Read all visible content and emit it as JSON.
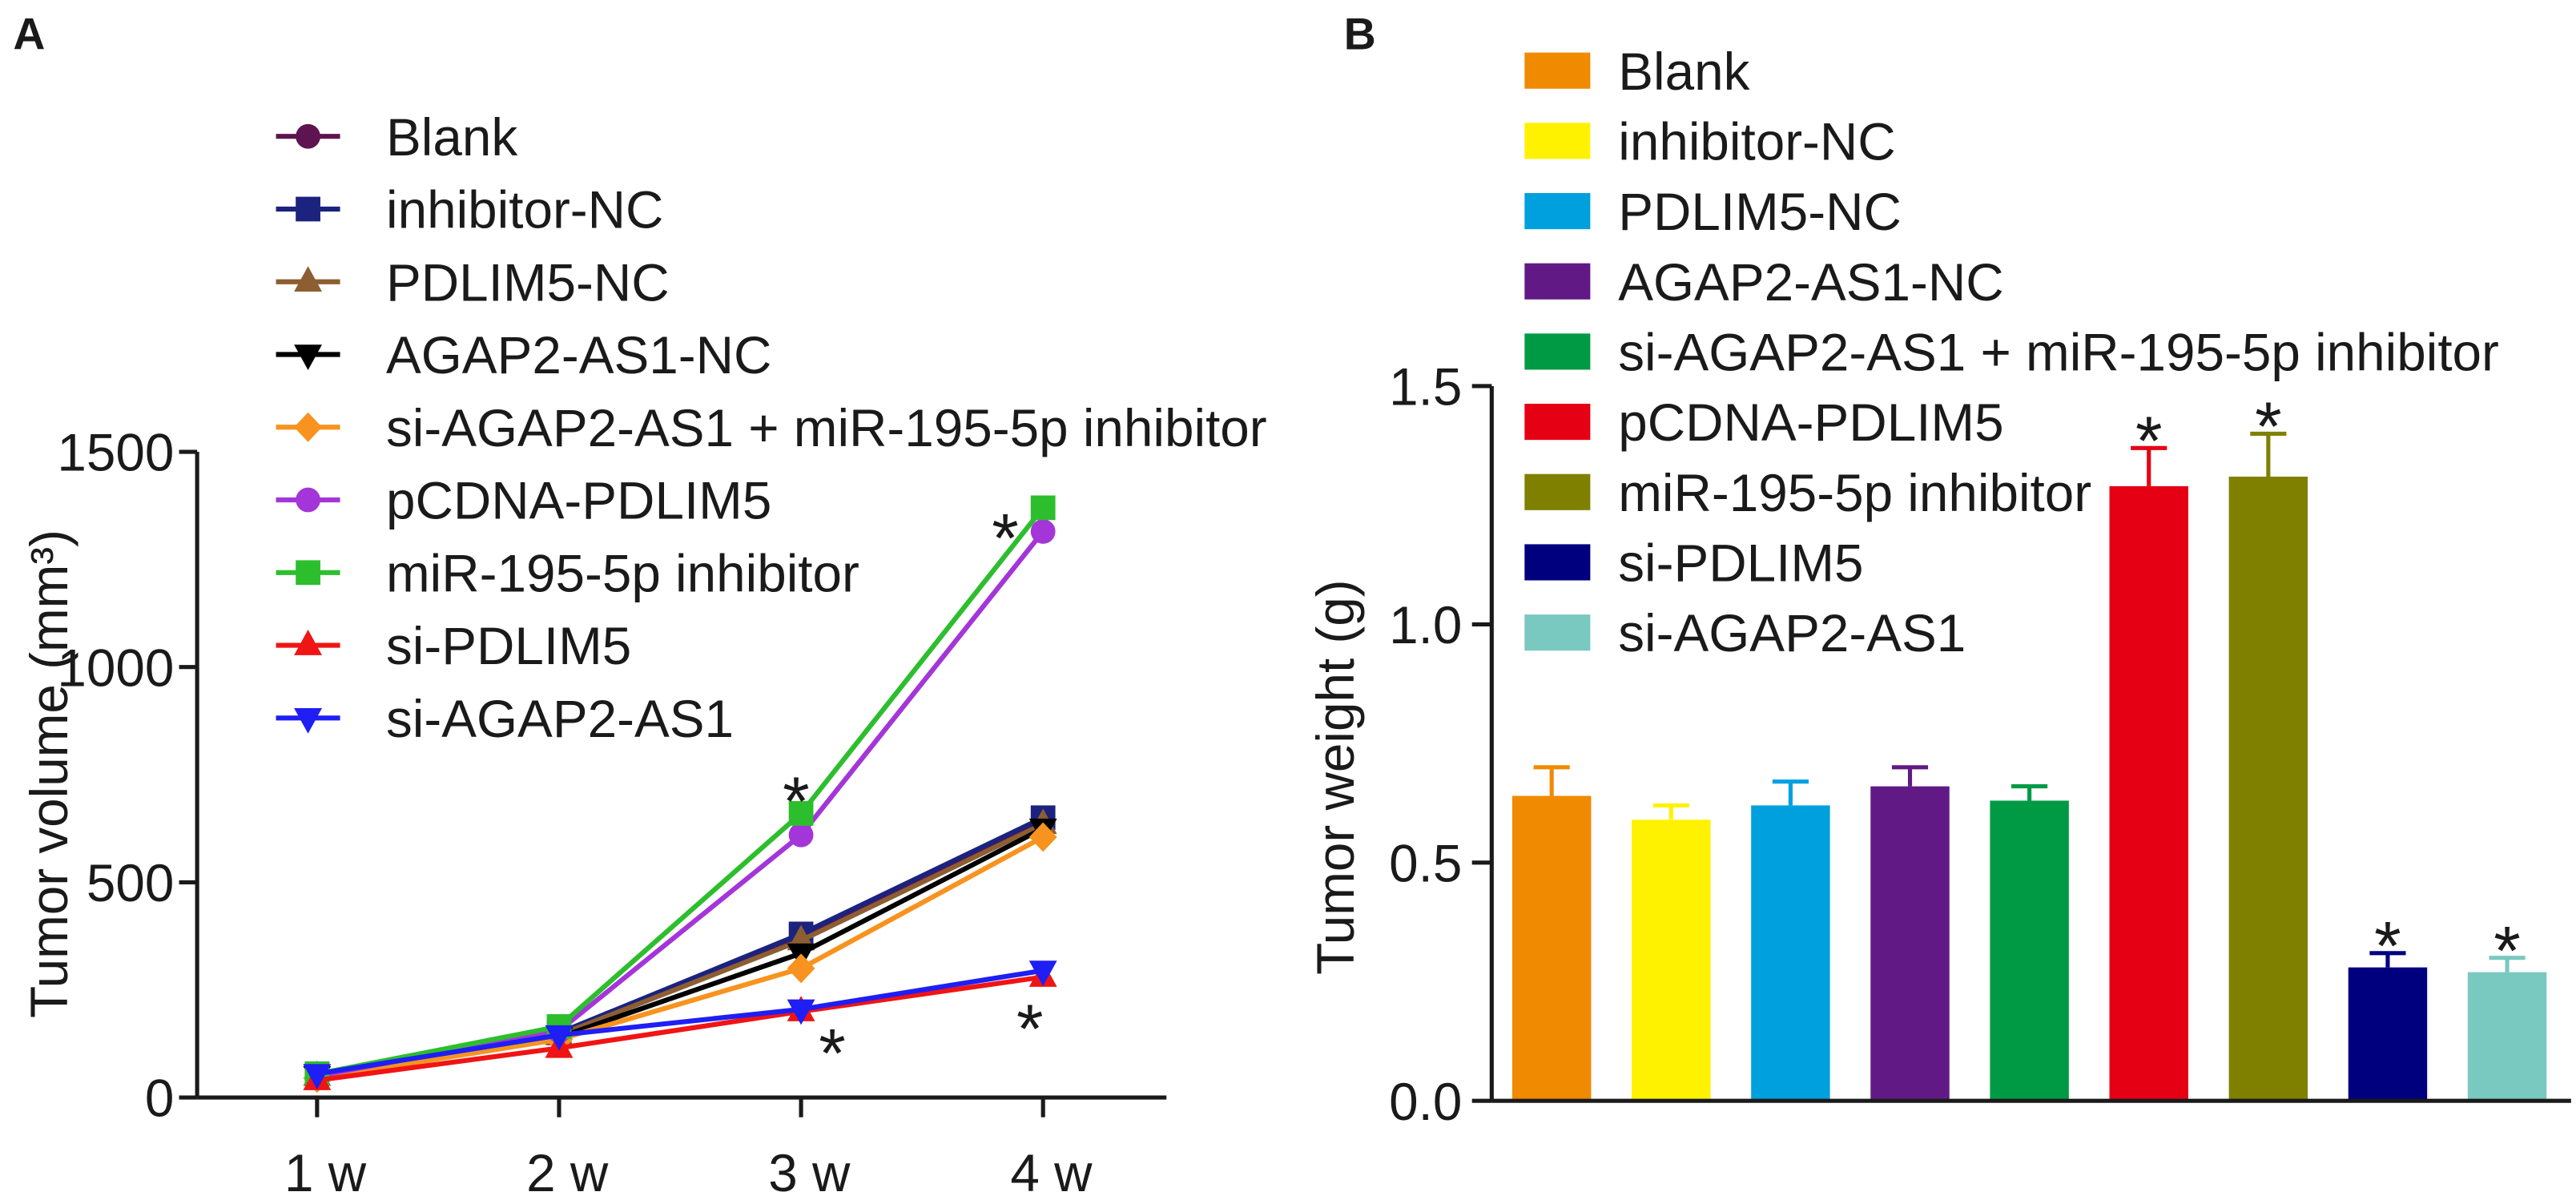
{
  "chart_data": [
    {
      "panel": "A",
      "type": "line",
      "title": "",
      "xlabel": "",
      "ylabel": "Tumor volume (mm³)",
      "categories": [
        "1 w",
        "2 w",
        "3 w",
        "4 w"
      ],
      "ylim": [
        0,
        1500
      ],
      "yticks": [
        "0",
        "500",
        "1000",
        "1500"
      ],
      "grid": false,
      "legend": "top-left",
      "series": [
        {
          "name": "Blank",
          "marker": "circle",
          "color": "#5E1450",
          "values": [
            50,
            150,
            370,
            640
          ]
        },
        {
          "name": "inhibitor-NC",
          "marker": "square",
          "color": "#1B237E",
          "values": [
            55,
            150,
            380,
            650
          ]
        },
        {
          "name": "PDLIM5-NC",
          "marker": "triangle-up",
          "color": "#8C5E32",
          "values": [
            50,
            145,
            365,
            635
          ]
        },
        {
          "name": "AGAP2-AS1-NC",
          "marker": "triangle-down",
          "color": "#000000",
          "values": [
            50,
            140,
            335,
            625
          ]
        },
        {
          "name": "si-AGAP2-AS1 + miR-195-5p inhibitor",
          "marker": "diamond",
          "color": "#F7931E",
          "values": [
            45,
            135,
            300,
            605
          ]
        },
        {
          "name": "pCDNA-PDLIM5",
          "marker": "circle",
          "color": "#A435D8",
          "values": [
            50,
            155,
            610,
            1315
          ]
        },
        {
          "name": "miR-195-5p inhibitor",
          "marker": "square",
          "color": "#2DBE2D",
          "values": [
            55,
            165,
            660,
            1370
          ]
        },
        {
          "name": "si-PDLIM5",
          "marker": "triangle-up",
          "color": "#F01414",
          "values": [
            40,
            115,
            200,
            280
          ]
        },
        {
          "name": "si-AGAP2-AS1",
          "marker": "triangle-down",
          "color": "#1E1EF5",
          "values": [
            55,
            145,
            205,
            295
          ]
        }
      ],
      "annotations": [
        {
          "text": "*",
          "series": 6,
          "category": 2,
          "placement": "above"
        },
        {
          "text": "*",
          "series": 7,
          "category": 2,
          "placement": "below-right"
        },
        {
          "text": "*",
          "series": 6,
          "category": 3,
          "placement": "left"
        },
        {
          "text": "*",
          "series": 7,
          "category": 3,
          "placement": "below-left"
        }
      ]
    },
    {
      "panel": "B",
      "type": "bar",
      "title": "",
      "xlabel": "",
      "ylabel": "Tumor weight (g)",
      "ylim": [
        0,
        1.5
      ],
      "yticks": [
        "0.0",
        "0.5",
        "1.0",
        "1.5"
      ],
      "grid": false,
      "legend": "top-left",
      "categories": [
        "Blank",
        "inhibitor-NC",
        "PDLIM5-NC",
        "AGAP2-AS1-NC",
        "si-AGAP2-AS1 + miR-195-5p inhibitor",
        "pCDNA-PDLIM5",
        "miR-195-5p inhibitor",
        "si-PDLIM5",
        "si-AGAP2-AS1"
      ],
      "values": [
        0.64,
        0.59,
        0.62,
        0.66,
        0.63,
        1.29,
        1.31,
        0.28,
        0.27
      ],
      "errors": [
        0.06,
        0.03,
        0.05,
        0.04,
        0.03,
        0.08,
        0.09,
        0.03,
        0.03
      ],
      "colors": [
        "#F08A00",
        "#FFF200",
        "#00A0DF",
        "#611A85",
        "#009A45",
        "#E60014",
        "#808000",
        "#00007F",
        "#79C9C1"
      ],
      "significance": [
        "",
        "",
        "",
        "",
        "",
        "*",
        "*",
        "*",
        "*"
      ]
    }
  ]
}
